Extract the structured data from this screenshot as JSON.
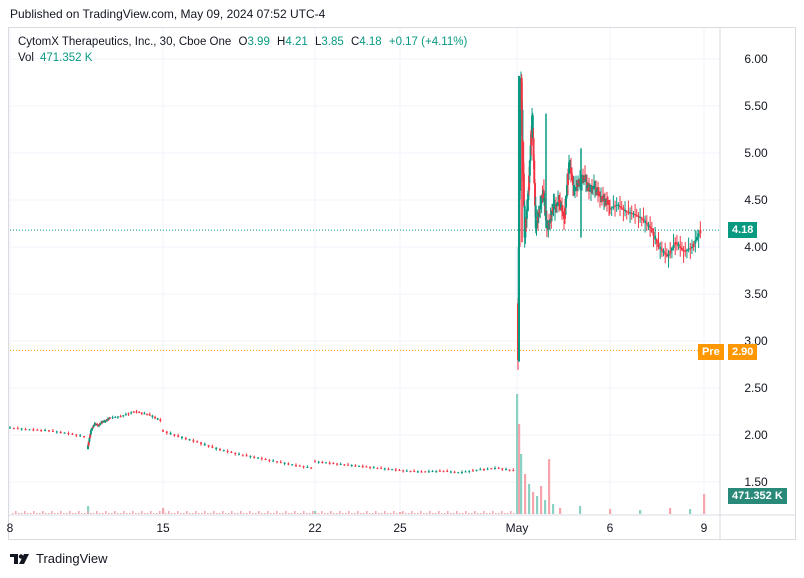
{
  "header": {
    "published": "Published on TradingView.com, May 09, 2024 07:52 UTC-4"
  },
  "legend": {
    "title": "CytomX Therapeutics, Inc., 30, Cboe One",
    "o_label": "O",
    "o_value": "3.99",
    "h_label": "H",
    "h_value": "4.21",
    "l_label": "L",
    "l_value": "3.85",
    "c_label": "C",
    "c_value": "4.18",
    "change": "+0.17 (+4.11%)",
    "vol_label": "Vol",
    "vol_value": "471.352 K"
  },
  "badges": {
    "last_price": "4.18",
    "pre_label": "Pre",
    "pre_price": "2.90",
    "volume": "471.352 K"
  },
  "footer": {
    "brand": "TradingView"
  },
  "colors": {
    "up": "#089981",
    "down": "#f23645",
    "pre_line": "#ff9800",
    "grid": "#f0f3fa",
    "axis_text": "#131722"
  },
  "chart_data": {
    "type": "candlestick",
    "y_axis": {
      "ticks": [
        "6.00",
        "5.50",
        "5.00",
        "4.50",
        "4.00",
        "3.50",
        "3.00",
        "2.50",
        "2.00",
        "1.50"
      ],
      "tick_values": [
        6.0,
        5.5,
        5.0,
        4.5,
        4.0,
        3.5,
        3.0,
        2.5,
        2.0,
        1.5
      ],
      "range": [
        1.3,
        6.25
      ],
      "scale": "linear"
    },
    "x_axis": {
      "ticks": [
        "8",
        "15",
        "22",
        "25",
        "May",
        "6",
        "9"
      ]
    },
    "price_lines": {
      "last": 4.18,
      "premarket": 2.9
    },
    "series": [
      {
        "name": "price",
        "segments": [
          {
            "from": "Apr 8",
            "to": "Apr 11",
            "values": [
              2.08,
              2.06,
              2.05,
              2.02,
              1.98
            ]
          },
          {
            "from": "Apr 11",
            "to": "Apr 12",
            "values": [
              1.85,
              2.05,
              2.12,
              2.1,
              2.14,
              2.15,
              2.18
            ]
          },
          {
            "from": "Apr 12",
            "to": "Apr 15",
            "values": [
              2.18,
              2.2,
              2.25,
              2.22,
              2.15
            ]
          },
          {
            "from": "Apr 15",
            "to": "Apr 22",
            "values": [
              2.05,
              1.98,
              1.92,
              1.85,
              1.8,
              1.76,
              1.72,
              1.68,
              1.65
            ]
          },
          {
            "from": "Apr 22",
            "to": "Apr 30",
            "values": [
              1.72,
              1.7,
              1.68,
              1.66,
              1.64,
              1.62,
              1.61,
              1.62,
              1.6,
              1.63,
              1.65,
              1.62
            ]
          },
          {
            "from": "May 1",
            "to": "May 2",
            "values": [
              2.8,
              5.8,
              4.1,
              4.6,
              5.4,
              4.2,
              4.4,
              4.6,
              4.2,
              4.3,
              4.5
            ]
          },
          {
            "from": "May 2",
            "to": "May 6",
            "values": [
              4.4,
              4.5,
              4.3,
              4.9,
              4.6,
              4.7,
              4.75,
              4.6,
              4.65,
              4.55,
              4.5,
              4.45
            ]
          },
          {
            "from": "May 6",
            "to": "May 9",
            "values": [
              4.4,
              4.45,
              4.38,
              4.35,
              4.3,
              4.2,
              4.0,
              3.9,
              4.05,
              3.95,
              4.0,
              4.18
            ]
          }
        ]
      }
    ],
    "volume": {
      "last_value_label": "471.352 K"
    }
  }
}
